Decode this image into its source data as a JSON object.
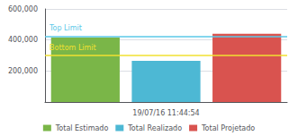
{
  "chart_data": {
    "type": "bar",
    "categories": [
      null,
      "19/07/16 11:44:54",
      null
    ],
    "series": [
      {
        "name": "Total Estimado",
        "color": "#7ab648",
        "values": [
          415000,
          null,
          null
        ]
      },
      {
        "name": "Total Realizado",
        "color": "#4db8d4",
        "values": [
          null,
          265000,
          null
        ]
      },
      {
        "name": "Total Projetado",
        "color": "#d9534f",
        "values": [
          null,
          null,
          440000
        ]
      }
    ],
    "hlines": [
      {
        "y": 422000,
        "label": "Top Limit",
        "color": "#5bc8e8"
      },
      {
        "y": 300000,
        "label": "Bottom Limit",
        "color": "#f0e030"
      }
    ],
    "ylim": [
      0,
      600000
    ],
    "yticks": [
      {
        "value": 200000,
        "label": "200,000"
      },
      {
        "value": 400000,
        "label": "400,000"
      },
      {
        "value": 600000,
        "label": "600,000"
      }
    ],
    "grid": true,
    "legend": "bottom"
  }
}
